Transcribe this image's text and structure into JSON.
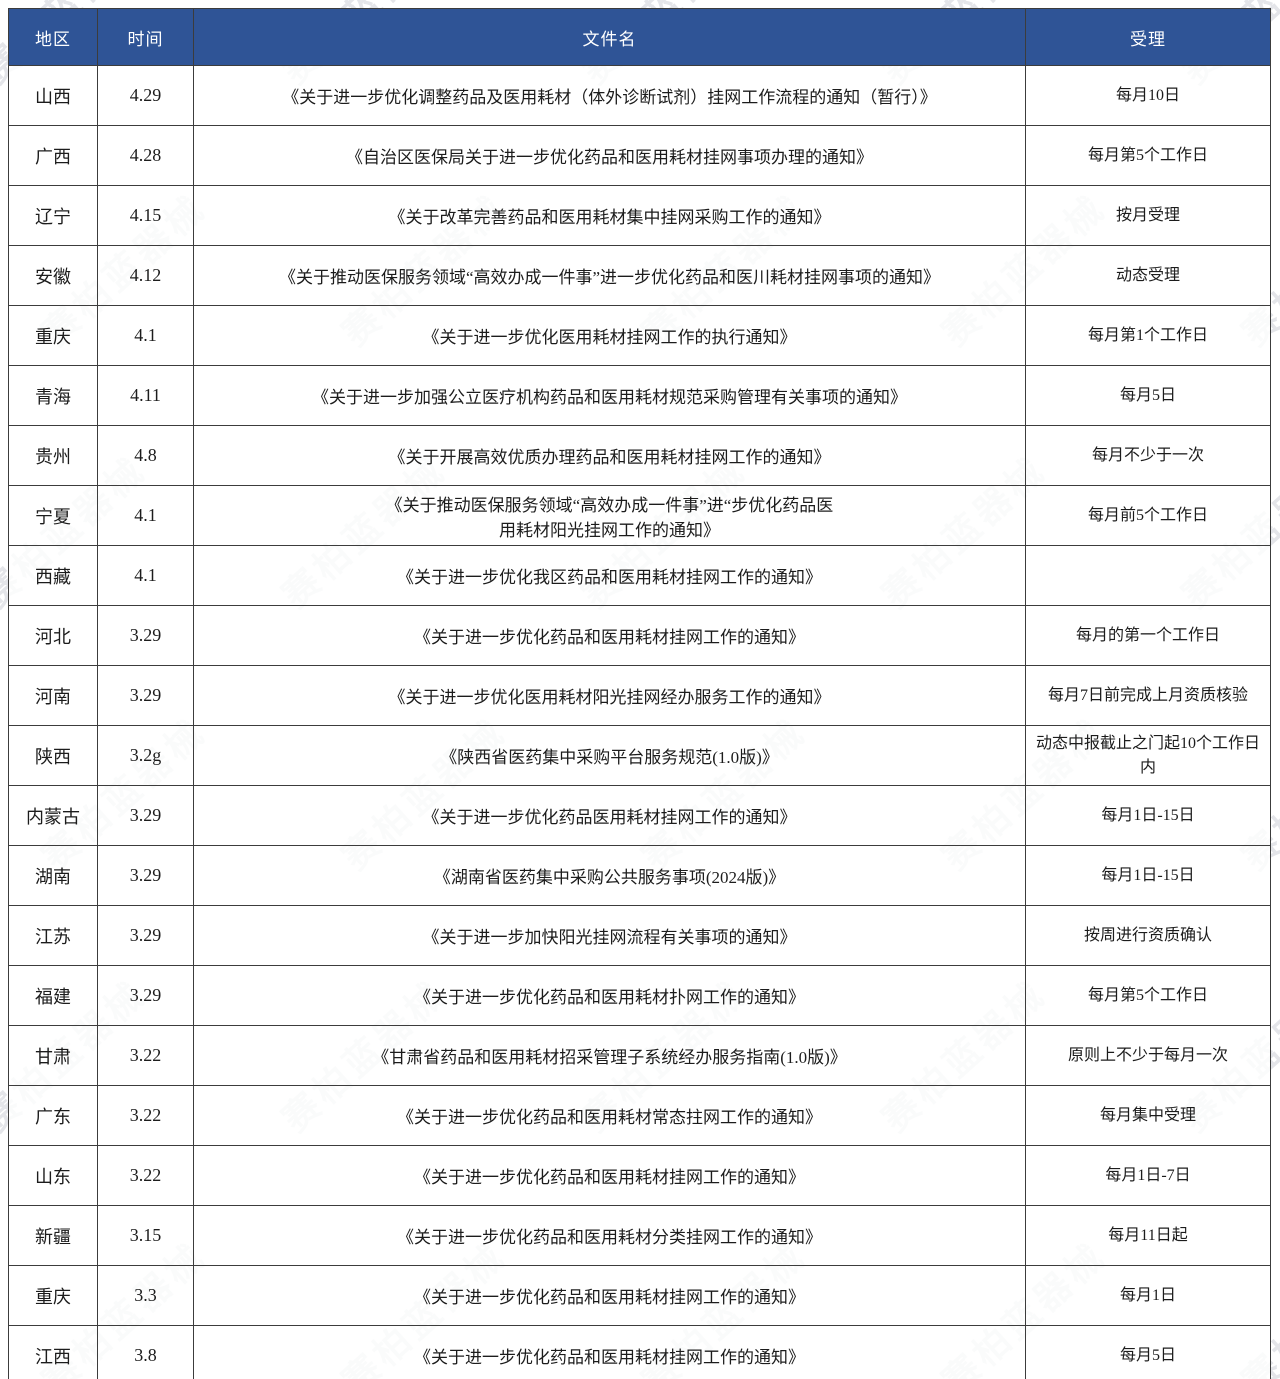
{
  "watermark": {
    "text": "赛柏蓝器械",
    "color": "#b9bdc6"
  },
  "colors": {
    "header_bg": "#2F5496",
    "header_text": "#FFFFFF",
    "border": "#3C3C3C",
    "body_text": "#1C1C1C"
  },
  "table": {
    "headers": {
      "region": "地区",
      "date": "时间",
      "filename": "文件名",
      "acceptance": "受理"
    },
    "rows": [
      {
        "region": "山西",
        "date": "4.29",
        "title": "《关于进一步优化调整药品及医用耗材（体外诊断试剂）挂网工作流程的通知（暂行）》",
        "acceptance": "每月10日"
      },
      {
        "region": "广西",
        "date": "4.28",
        "title": "《自治区医保局关于进一步优化药品和医用耗材挂网事项办理的通知》",
        "acceptance": "每月第5个工作日"
      },
      {
        "region": "辽宁",
        "date": "4.15",
        "title": "《关于改革完善药品和医用耗材集中挂网采购工作的通知》",
        "acceptance": "按月受理"
      },
      {
        "region": "安徽",
        "date": "4.12",
        "title": "《关于推动医保服务领域“高效办成一件事”进一步优化药品和医川耗材挂网事项的通知》",
        "acceptance": "动态受理"
      },
      {
        "region": "重庆",
        "date": "4.1",
        "title": "《关于进一步优化医用耗材挂网工作的执行通知》",
        "acceptance": "每月第1个工作日"
      },
      {
        "region": "青海",
        "date": "4.11",
        "title": "《关于进一步加强公立医疗机构药品和医用耗材规范采购管理有关事项的通知》",
        "acceptance": "每月5日"
      },
      {
        "region": "贵州",
        "date": "4.8",
        "title": "《关于开展高效优质办理药品和医用耗材挂网工作的通知》",
        "acceptance": "每月不少于一次"
      },
      {
        "region": "宁夏",
        "date": "4.1",
        "title": "《关于推动医保服务领域“高效办成一件事”进“步优化药品医\n用耗材阳光挂网工作的通知》",
        "acceptance": "每月前5个工作日"
      },
      {
        "region": "西藏",
        "date": "4.1",
        "title": "《关于进一步优化我区药品和医用耗材挂网工作的通知》",
        "acceptance": ""
      },
      {
        "region": "河北",
        "date": "3.29",
        "title": "《关于进一步优化药品和医用耗材挂网工作的通知》",
        "acceptance": "每月的第一个工作日"
      },
      {
        "region": "河南",
        "date": "3.29",
        "title": "《关于进一步优化医用耗材阳光挂网经办服务工作的通知》",
        "acceptance": "每月7日前完成上月资质核验"
      },
      {
        "region": "陕西",
        "date": "3.2g",
        "title": "《陕西省医药集中采购平台服务规范(1.0版)》",
        "acceptance": "动态中报截止之门起10个工作日内"
      },
      {
        "region": "内蒙古",
        "date": "3.29",
        "title": "《关于进一步优化药品医用耗材挂网工作的通知》",
        "acceptance": "每月1日-15日"
      },
      {
        "region": "湖南",
        "date": "3.29",
        "title": "《湖南省医药集中采购公共服务事项(2024版)》",
        "acceptance": "每月1日-15日"
      },
      {
        "region": "江苏",
        "date": "3.29",
        "title": "《关于进一步加快阳光挂网流程有关事项的通知》",
        "acceptance": "按周进行资质确认"
      },
      {
        "region": "福建",
        "date": "3.29",
        "title": "《关于进一步优化药品和医用耗材扑网工作的通知》",
        "acceptance": "每月第5个工作日"
      },
      {
        "region": "甘肃",
        "date": "3.22",
        "title": "《甘肃省药品和医用耗材招采管理子系统经办服务指南(1.0版)》",
        "acceptance": "原则上不少于每月一次"
      },
      {
        "region": "广东",
        "date": "3.22",
        "title": "《关于进一步优化药品和医用耗材常态拄网工作的通知》",
        "acceptance": "每月集中受理"
      },
      {
        "region": "山东",
        "date": "3.22",
        "title": "《关于进一步优化药品和医用耗材挂网工作的通知》",
        "acceptance": "每月1日-7日"
      },
      {
        "region": "新疆",
        "date": "3.15",
        "title": "《关于进一步优化药品和医用耗材分类挂网工作的通知》",
        "acceptance": "每月11日起"
      },
      {
        "region": "重庆",
        "date": "3.3",
        "title": "《关于进一步优化药品和医用耗材挂网工作的通知》",
        "acceptance": "每月1日"
      },
      {
        "region": "江西",
        "date": "3.8",
        "title": "《关于进一步优化药品和医用耗材挂网工作的通知》",
        "acceptance": "每月5日"
      }
    ]
  }
}
